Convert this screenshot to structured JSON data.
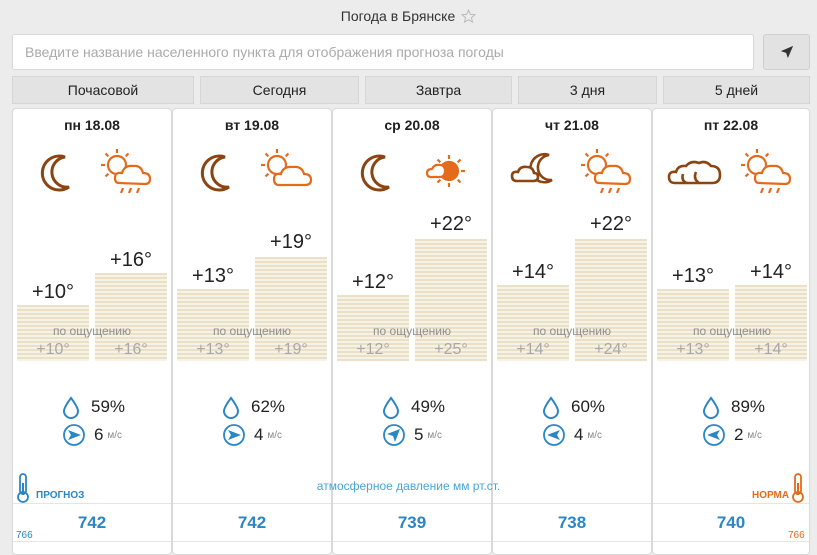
{
  "header": {
    "title": "Погода в Брянске",
    "star_icon": "star-icon"
  },
  "search": {
    "placeholder": "Введите название населенного пункта для отображения прогноза погоды",
    "value": ""
  },
  "locate": {
    "icon": "location-arrow-icon"
  },
  "tabs": [
    {
      "label": "Почасовой"
    },
    {
      "label": "Сегодня"
    },
    {
      "label": "Завтра"
    },
    {
      "label": "3 дня"
    },
    {
      "label": "5 дней"
    }
  ],
  "feels_caption": "по ощущению",
  "days": [
    {
      "date": "пн 18.08",
      "night_icon": "moon-icon",
      "day_icon": "sun-cloud-rain-icon",
      "night_temp": "+10°",
      "day_temp": "+16°",
      "night_feels": "+10°",
      "day_feels": "+16°",
      "humidity": "59%",
      "wind_speed": "6",
      "wind_unit": "м/с",
      "wind_icon": "wind-direction-east-icon",
      "pressure": "742"
    },
    {
      "date": "вт 19.08",
      "night_icon": "moon-icon",
      "day_icon": "sun-cloud-icon",
      "night_temp": "+13°",
      "day_temp": "+19°",
      "night_feels": "+13°",
      "day_feels": "+19°",
      "humidity": "62%",
      "wind_speed": "4",
      "wind_unit": "м/с",
      "wind_icon": "wind-direction-east-icon",
      "pressure": "742"
    },
    {
      "date": "ср 20.08",
      "night_icon": "moon-icon",
      "day_icon": "sun-small-cloud-icon",
      "night_temp": "+12°",
      "day_temp": "+22°",
      "night_feels": "+12°",
      "day_feels": "+25°",
      "humidity": "49%",
      "wind_speed": "5",
      "wind_unit": "м/с",
      "wind_icon": "wind-direction-northeast-icon",
      "pressure": "739"
    },
    {
      "date": "чт 21.08",
      "night_icon": "moon-cloud-icon",
      "day_icon": "sun-cloud-rain-icon",
      "night_temp": "+14°",
      "day_temp": "+22°",
      "night_feels": "+14°",
      "day_feels": "+24°",
      "humidity": "60%",
      "wind_speed": "4",
      "wind_unit": "м/с",
      "wind_icon": "wind-direction-west-icon",
      "pressure": "738"
    },
    {
      "date": "пт 22.08",
      "night_icon": "cloud-icon",
      "day_icon": "sun-cloud-rain-icon",
      "night_temp": "+13°",
      "day_temp": "+14°",
      "night_feels": "+13°",
      "day_feels": "+14°",
      "humidity": "89%",
      "wind_speed": "2",
      "wind_unit": "м/с",
      "wind_icon": "wind-direction-west-icon",
      "pressure": "740"
    }
  ],
  "pressure_caption": "атмосферное давление  мм рт.ст.",
  "forecast_label": "ПРОГНОЗ",
  "norm_label": "НОРМА",
  "scale_left": "766",
  "scale_right": "766",
  "colors": {
    "accent_blue": "#2b86c5",
    "accent_orange": "#e36b1c",
    "icon_brown": "#8b4513"
  }
}
